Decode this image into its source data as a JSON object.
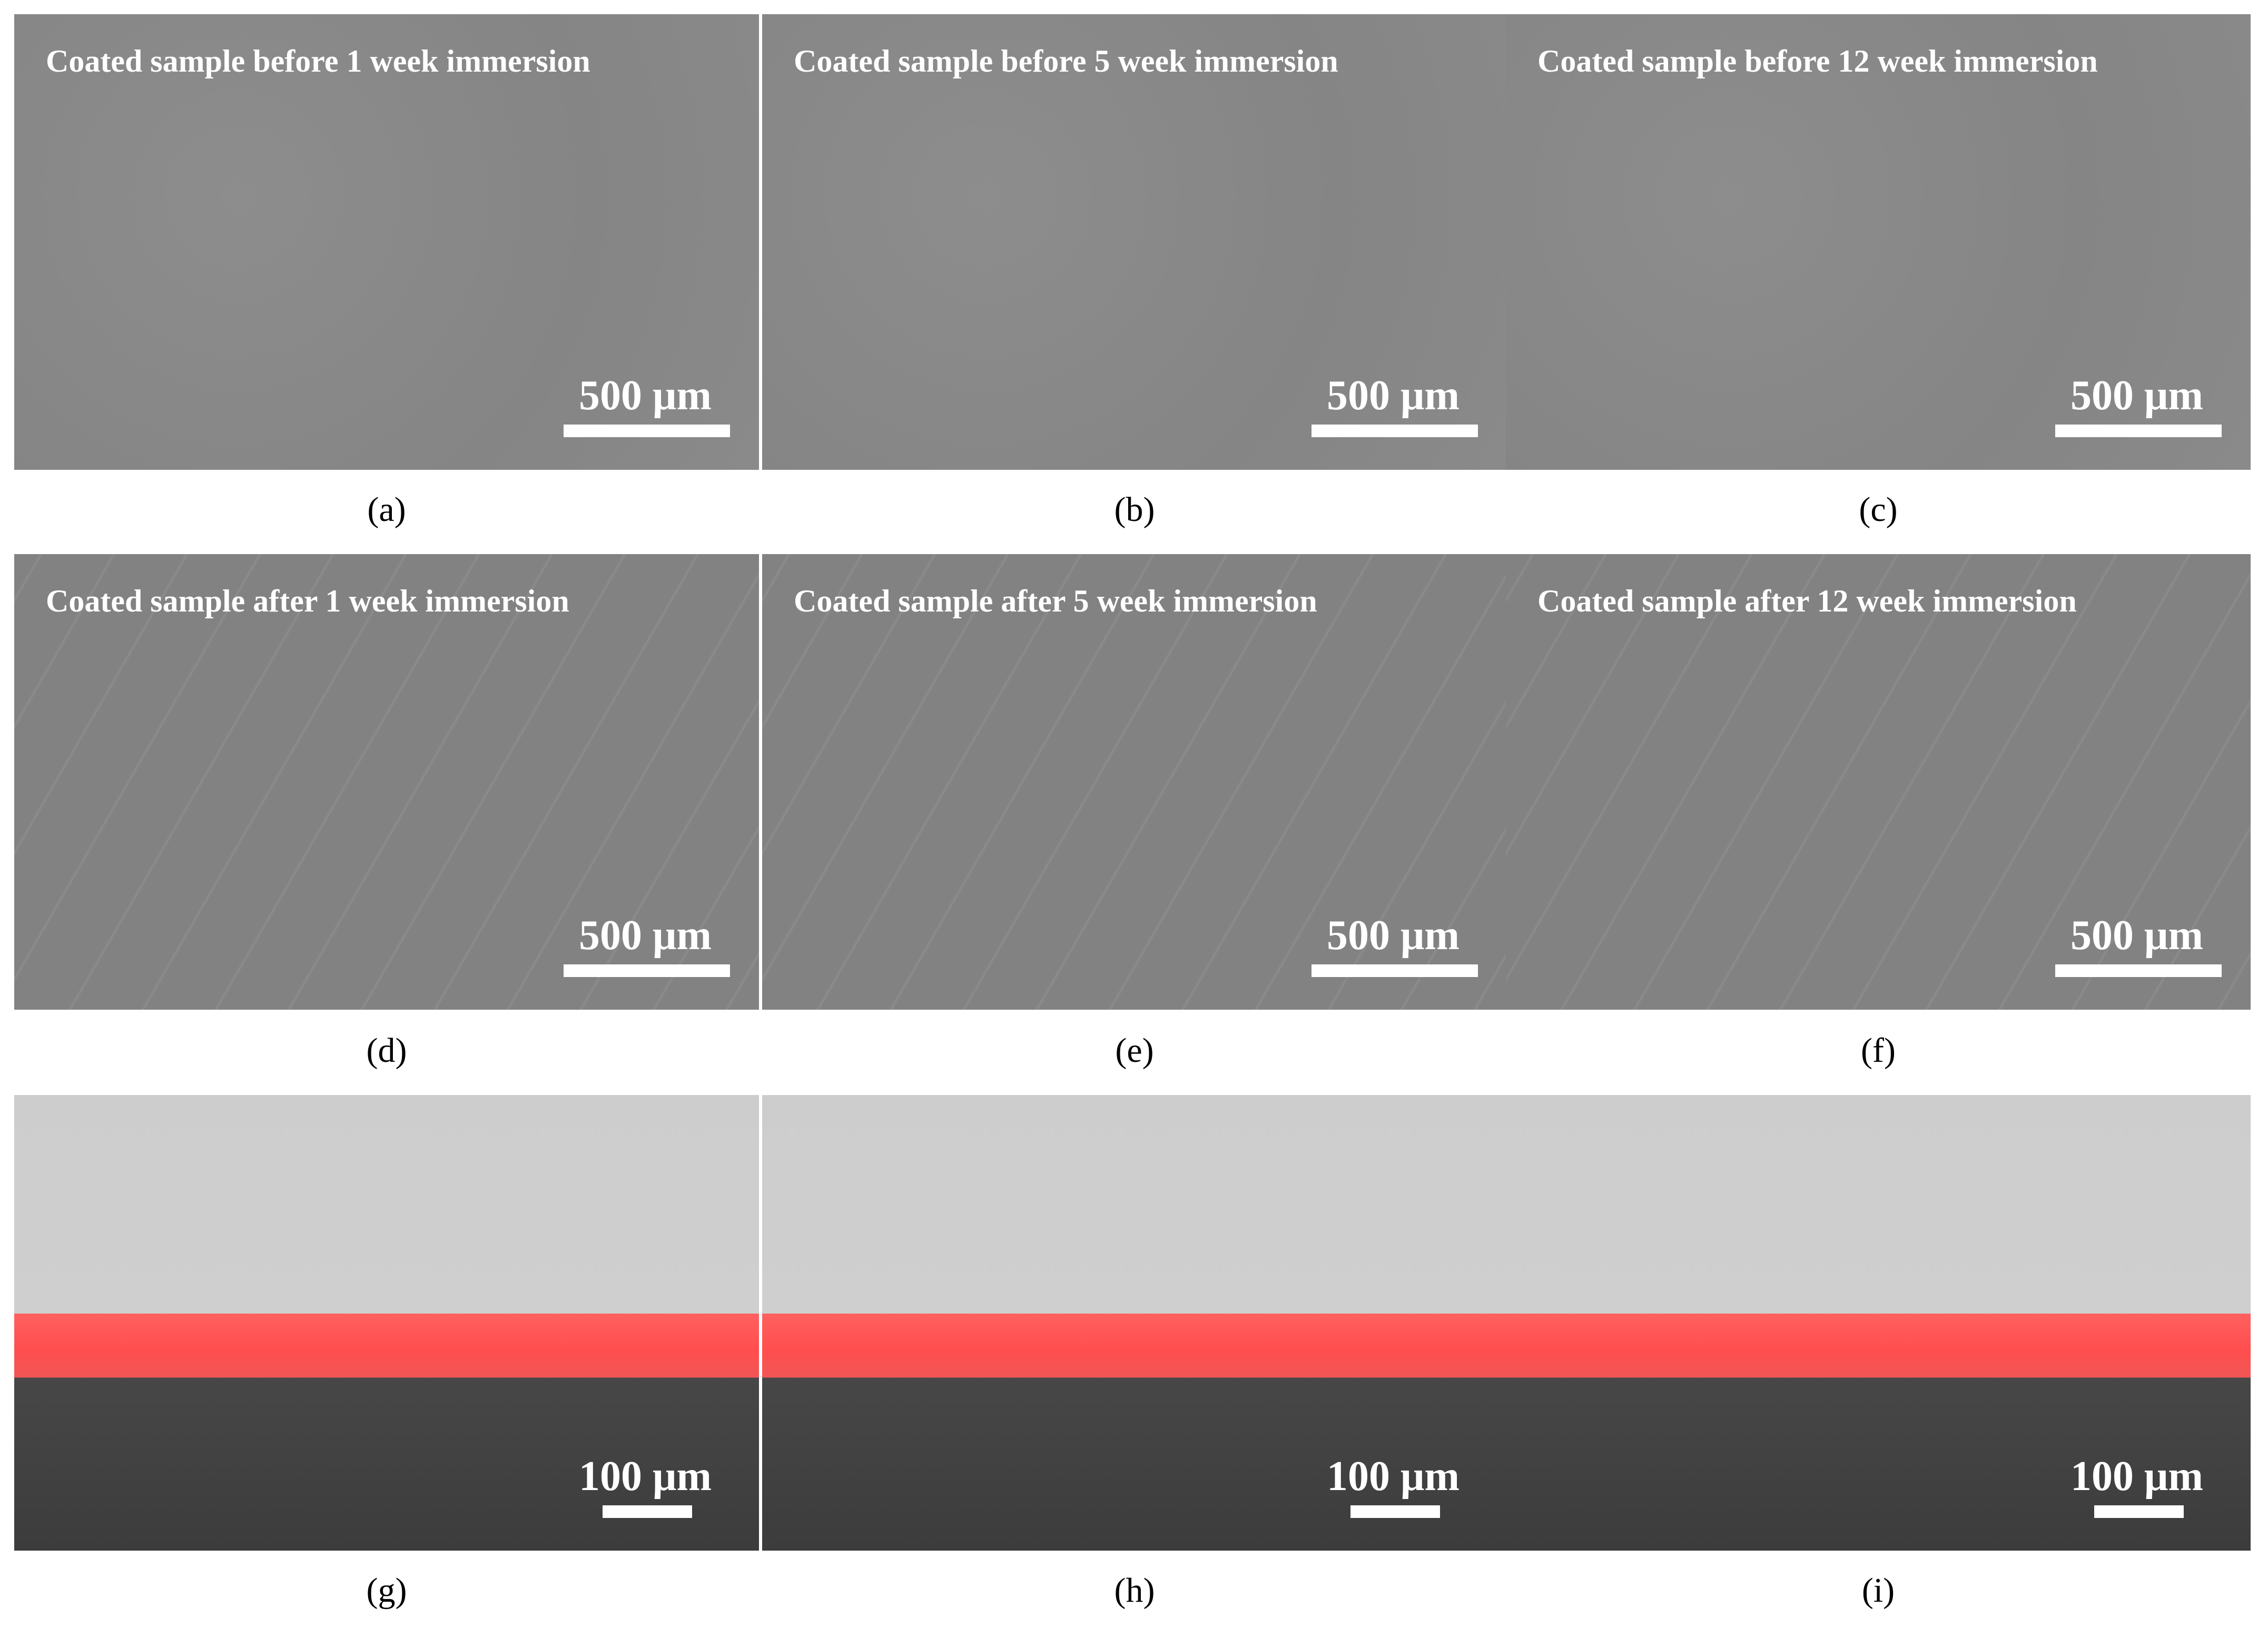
{
  "panels": [
    {
      "label": "Coated sample before 1 week immersion",
      "scale_bar": "500 μm",
      "caption": "(a)"
    },
    {
      "label": "Coated sample before 5 week immersion",
      "scale_bar": "500 μm",
      "caption": "(b)"
    },
    {
      "label": "Coated sample before 12 week immersion",
      "scale_bar": "500 μm",
      "caption": "(c)"
    },
    {
      "label": "Coated sample after 1 week immersion",
      "scale_bar": "500 μm",
      "caption": "(d)"
    },
    {
      "label": "Coated sample after 5 week immersion",
      "scale_bar": "500 μm",
      "caption": "(e)"
    },
    {
      "label": "Coated sample after 12 week immersion",
      "scale_bar": "500 μm",
      "caption": "(f)"
    },
    {
      "scale_bar": "100 μm",
      "caption": "(g)"
    },
    {
      "scale_bar": "100 μm",
      "caption": "(h)"
    },
    {
      "scale_bar": "100 μm",
      "caption": "(i)"
    }
  ]
}
